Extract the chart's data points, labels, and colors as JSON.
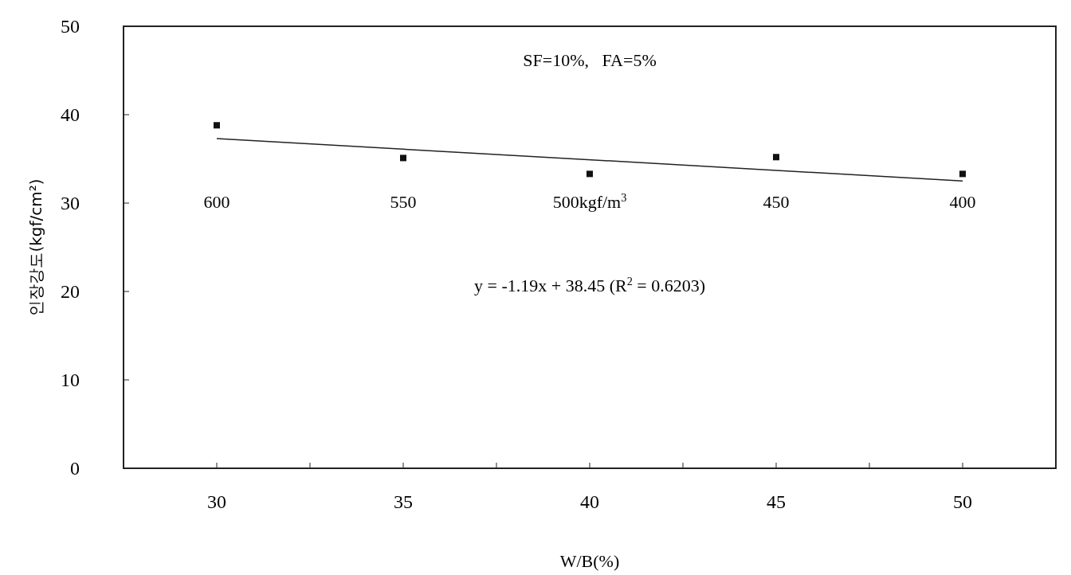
{
  "chart_data": {
    "type": "scatter",
    "xlabel": "W/B(%)",
    "ylabel": "인장강도(kgf/cm²)",
    "xlim": [
      27.5,
      52.5
    ],
    "ylim": [
      0,
      50
    ],
    "xticks": [
      30,
      {
        "value": 32.5,
        "label": null
      },
      35,
      {
        "value": 37.5,
        "label": null
      },
      40,
      {
        "value": 42.5,
        "label": null
      },
      45,
      {
        "value": 47.5,
        "label": null
      },
      50
    ],
    "yticks": [
      0,
      10,
      20,
      30,
      40,
      50
    ],
    "grid": false,
    "marker": "square",
    "series": [
      {
        "color": "#111111",
        "x": [
          30,
          35,
          40,
          45,
          50
        ],
        "values": [
          38.8,
          35.1,
          33.3,
          35.2,
          33.3
        ]
      },
      {
        "type": "line",
        "color": "#222222",
        "x": [
          30,
          50
        ],
        "values": [
          37.3,
          32.5
        ],
        "marker": "none",
        "line_style": "solid"
      }
    ],
    "annotations": [
      "SF=10%,   FA=5%",
      "y = -1.19x + 38.45 (R$^{2}$ = 0.6203)",
      "600",
      "550",
      "500kgf/m$^{3}$",
      "450",
      "400"
    ]
  }
}
